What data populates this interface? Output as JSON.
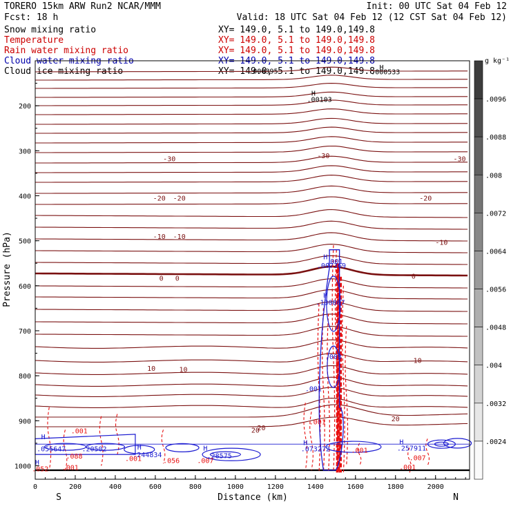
{
  "header": {
    "left_line1": "TORERO  15km ARW   Run2    NCAR/MMM",
    "left_line2": "Fcst:   18 h",
    "init": "Init: 00 UTC Sat 04 Feb 12",
    "valid": "Valid: 18 UTC Sat 04 Feb 12 (12 CST Sat 04 Feb 12)"
  },
  "legend": [
    {
      "label": "Snow mixing ratio",
      "xy": "XY= 149.0,  5.1 to 149.0,149.8",
      "color": "#000000"
    },
    {
      "label": "Temperature",
      "xy": "XY= 149.0,  5.1 to 149.0,149.8",
      "color": "#cc0000"
    },
    {
      "label": "Rain water mixing ratio",
      "xy": "XY= 149.0,  5.1 to 149.0,149.8",
      "color": "#cc0000"
    },
    {
      "label": "Cloud water mixing ratio",
      "xy": "XY= 149.0,  5.1 to 149.0,149.8",
      "color": "#0000aa"
    },
    {
      "label": "Cloud ice mixing ratio",
      "xy": "XY= 149.0,  5.1 to 149.0,149.8",
      "color": "#000000"
    }
  ],
  "colors": {
    "temperature": "#7a1010",
    "rain": "#e81010",
    "cloud_water": "#1a1ad0",
    "axis": "#000000"
  },
  "chart_data": {
    "type": "cross-section contour",
    "xlabel": "Distance (km)",
    "ylabel": "Pressure (hPa)",
    "xlim": [
      0,
      2170
    ],
    "ylim": [
      1030,
      100
    ],
    "x_ticks": [
      0,
      200,
      400,
      600,
      800,
      1000,
      1200,
      1400,
      1600,
      1800,
      2000
    ],
    "y_ticks": [
      200,
      300,
      400,
      500,
      600,
      700,
      800,
      900,
      1000
    ],
    "endpoints": {
      "left": "S",
      "right": "N"
    },
    "ground_pressure": 1010,
    "temperature_isotherms": [
      {
        "label": "-30",
        "label_positions": [
          [
            670,
            317
          ],
          [
            1440,
            310
          ],
          [
            2120,
            317
          ]
        ]
      },
      {
        "label": "-20",
        "label_positions": [
          [
            620,
            405
          ],
          [
            720,
            405
          ],
          [
            1950,
            405
          ]
        ]
      },
      {
        "label": "-10",
        "label_positions": [
          [
            620,
            490
          ],
          [
            720,
            490
          ],
          [
            2030,
            503
          ]
        ]
      },
      {
        "label": "0",
        "label_positions": [
          [
            630,
            583
          ],
          [
            710,
            583
          ],
          [
            1890,
            578
          ]
        ]
      },
      {
        "label": "10",
        "label_positions": [
          [
            580,
            783
          ],
          [
            740,
            785
          ],
          [
            1910,
            765
          ]
        ]
      },
      {
        "label": "20",
        "label_positions": [
          [
            1100,
            920
          ],
          [
            1130,
            915
          ],
          [
            1800,
            895
          ]
        ]
      }
    ],
    "extrema_labels": [
      {
        "text": ".000395",
        "x": 1140,
        "p": 122
      },
      {
        "text": ".000533",
        "x": 1750,
        "p": 124
      },
      {
        "text": "H",
        "x": 1730,
        "p": 114
      },
      {
        "text": "H",
        "x": 1390,
        "p": 171
      },
      {
        "text": ".00103",
        "x": 1420,
        "p": 185
      },
      {
        "text": "H",
        "x": 1450,
        "p": 535
      },
      {
        "text": ".001",
        "x": 1495,
        "p": 545
      },
      {
        "text": ".007369",
        "x": 1480,
        "p": 554
      },
      {
        "text": "H",
        "x": 1450,
        "p": 620
      },
      {
        "text": ".130867",
        "x": 1475,
        "p": 636
      },
      {
        "text": ".003",
        "x": 1490,
        "p": 757
      },
      {
        "text": ".001",
        "x": 1390,
        "p": 828
      },
      {
        "text": "H",
        "x": 40,
        "p": 935
      },
      {
        "text": ".001",
        "x": 220,
        "p": 922
      },
      {
        "text": ".055647",
        "x": 80,
        "p": 962
      },
      {
        "text": ".20502",
        "x": 295,
        "p": 962
      },
      {
        "text": "H",
        "x": 520,
        "p": 958
      },
      {
        "text": ".244834",
        "x": 560,
        "p": 975
      },
      {
        "text": ".056",
        "x": 680,
        "p": 988
      },
      {
        "text": "H",
        "x": 850,
        "p": 960
      },
      {
        "text": ".28575",
        "x": 920,
        "p": 977
      },
      {
        "text": ".007",
        "x": 850,
        "p": 988
      },
      {
        "text": "H",
        "x": 1350,
        "p": 948
      },
      {
        "text": ".073272",
        "x": 1400,
        "p": 962
      },
      {
        "text": ".001",
        "x": 1410,
        "p": 902
      },
      {
        "text": ".001",
        "x": 1620,
        "p": 965
      },
      {
        "text": "H",
        "x": 1830,
        "p": 946
      },
      {
        "text": ".257911",
        "x": 1880,
        "p": 960
      },
      {
        "text": ".007",
        "x": 1910,
        "p": 982
      },
      {
        "text": ".001",
        "x": 1860,
        "p": 1002
      },
      {
        "text": "H",
        "x": 10,
        "p": 992
      },
      {
        "text": ".052",
        "x": 25,
        "p": 1006
      },
      {
        "text": ".001",
        "x": 175,
        "p": 1003
      },
      {
        "text": ".001",
        "x": 490,
        "p": 983
      },
      {
        "text": ".088",
        "x": 195,
        "p": 978
      }
    ],
    "colorbar": {
      "unit": "g kg⁻¹",
      "levels": [
        ".0096",
        ".0088",
        ".008",
        ".0072",
        ".0064",
        ".0056",
        ".0048",
        ".004",
        ".0032",
        ".0024"
      ]
    }
  }
}
